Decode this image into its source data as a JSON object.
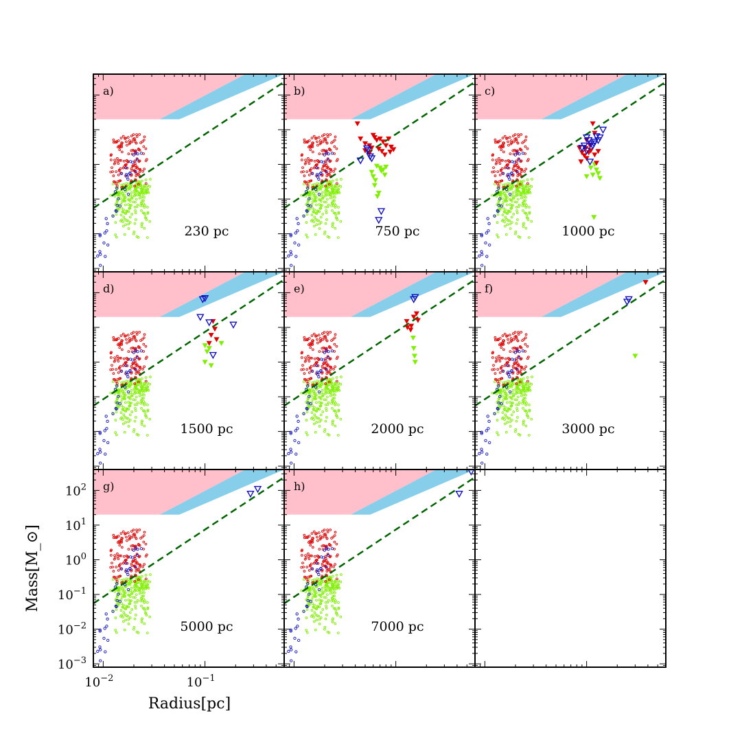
{
  "chart_data": {
    "type": "scatter",
    "layout": "3x3 grid of panels, shared log axes",
    "xlabel": "Radius[pc]",
    "ylabel": "Mass[M_⊙]",
    "xscale": "log",
    "yscale": "log",
    "xlim": [
      0.008,
      0.6
    ],
    "ylim": [
      0.0008,
      400
    ],
    "x_tick_labels": [
      {
        "value": 0.01,
        "base": "10",
        "exp": "−2"
      },
      {
        "value": 0.1,
        "base": "10",
        "exp": "−1"
      }
    ],
    "y_tick_labels": [
      {
        "value": 0.001,
        "base": "10",
        "exp": "−3"
      },
      {
        "value": 0.01,
        "base": "10",
        "exp": "−2"
      },
      {
        "value": 0.1,
        "base": "10",
        "exp": "−1"
      },
      {
        "value": 1,
        "base": "10",
        "exp": "0"
      },
      {
        "value": 10,
        "base": "10",
        "exp": "1"
      },
      {
        "value": 100,
        "base": "10",
        "exp": "2"
      }
    ],
    "colors": {
      "pink_region": "#ffc0cb",
      "blue_region": "#87ceeb",
      "red": "#e00000",
      "blue": "#1010c0",
      "green": "#7ff000",
      "threshold_line": "#006400"
    },
    "regions": {
      "pink_min_mass": 20,
      "pink_top_edge": [
        [
          0.008,
          400
        ],
        [
          0.6,
          400
        ]
      ],
      "blue_lower_edge": [
        [
          0.056,
          20
        ],
        [
          0.6,
          400
        ]
      ],
      "pink_blue_boundary": [
        [
          0.036,
          20
        ],
        [
          0.25,
          400
        ]
      ]
    },
    "threshold_line": {
      "style": "dashed",
      "points": [
        [
          0.008,
          0.055
        ],
        [
          0.6,
          240
        ]
      ]
    },
    "background_population": {
      "red_small_circles": "≈140 pts, radius 0.012–0.027 pc, mass 0.2–7",
      "blue_small_circles": "≈40 pts, radius 0.008–0.022 pc, mass 0.001–3",
      "green_small_dots": "≈220 pts, radius 0.012–0.028 pc, mass 0.002–0.4"
    },
    "panels": [
      {
        "id": "a",
        "label": "a)",
        "distance": "230 pc",
        "red_tri": [],
        "blue_tri": [],
        "green_tri": []
      },
      {
        "id": "b",
        "label": "b)",
        "distance": "750 pc",
        "red_tri": [
          [
            0.042,
            15
          ],
          [
            0.045,
            5.5
          ],
          [
            0.05,
            4
          ],
          [
            0.055,
            3.5
          ],
          [
            0.06,
            7
          ],
          [
            0.058,
            3
          ],
          [
            0.065,
            5
          ],
          [
            0.07,
            5.5
          ],
          [
            0.075,
            4.5
          ],
          [
            0.08,
            3.5
          ],
          [
            0.085,
            5.5
          ],
          [
            0.09,
            3.2
          ],
          [
            0.068,
            2.8
          ],
          [
            0.062,
            6
          ],
          [
            0.073,
            2.4
          ],
          [
            0.055,
            2.1
          ],
          [
            0.078,
            1.9
          ],
          [
            0.088,
            2.3
          ],
          [
            0.095,
            2.7
          ],
          [
            0.05,
            2.5
          ]
        ],
        "blue_tri": [
          [
            0.045,
            1.3
          ],
          [
            0.053,
            2.6
          ],
          [
            0.056,
            1.7
          ],
          [
            0.058,
            1.5
          ],
          [
            0.052,
            2.9
          ],
          [
            0.072,
            0.045
          ],
          [
            0.068,
            0.025
          ]
        ],
        "green_tri": [
          [
            0.058,
            0.6
          ],
          [
            0.06,
            0.45
          ],
          [
            0.063,
            0.35
          ],
          [
            0.065,
            0.9
          ],
          [
            0.07,
            0.8
          ],
          [
            0.072,
            0.65
          ],
          [
            0.075,
            0.7
          ],
          [
            0.062,
            0.25
          ],
          [
            0.068,
            0.15
          ],
          [
            0.08,
            0.85
          ],
          [
            0.078,
            0.5
          ],
          [
            0.066,
            0.12
          ]
        ]
      },
      {
        "id": "c",
        "label": "c)",
        "distance": "1000 pc",
        "red_tri": [
          [
            0.115,
            15
          ],
          [
            0.12,
            8
          ],
          [
            0.1,
            5
          ],
          [
            0.085,
            3
          ],
          [
            0.09,
            2.2
          ],
          [
            0.11,
            2.5
          ],
          [
            0.095,
            1.8
          ],
          [
            0.1,
            1.5
          ],
          [
            0.105,
            2.2
          ],
          [
            0.12,
            1.9
          ],
          [
            0.13,
            2.4
          ],
          [
            0.108,
            3.5
          ],
          [
            0.098,
            2.9
          ],
          [
            0.088,
            1.2
          ],
          [
            0.125,
            1.1
          ]
        ],
        "blue_tri": [
          [
            0.1,
            6
          ],
          [
            0.105,
            5
          ],
          [
            0.11,
            4
          ],
          [
            0.095,
            3.5
          ],
          [
            0.12,
            4.5
          ],
          [
            0.13,
            5
          ],
          [
            0.125,
            6.5
          ],
          [
            0.09,
            3
          ],
          [
            0.135,
            6
          ],
          [
            0.1,
            2.5
          ],
          [
            0.115,
            3.5
          ],
          [
            0.145,
            10
          ],
          [
            0.108,
            1.2
          ],
          [
            0.118,
            4
          ]
        ],
        "green_tri": [
          [
            0.11,
            0.8
          ],
          [
            0.12,
            1
          ],
          [
            0.115,
            0.5
          ],
          [
            0.125,
            0.7
          ],
          [
            0.13,
            0.55
          ],
          [
            0.135,
            0.4
          ],
          [
            0.1,
            0.45
          ],
          [
            0.118,
            0.03
          ]
        ]
      },
      {
        "id": "d",
        "label": "d)",
        "distance": "1500 pc",
        "red_tri": [
          [
            0.12,
            15
          ],
          [
            0.115,
            6
          ],
          [
            0.125,
            9
          ],
          [
            0.13,
            4.5
          ],
          [
            0.11,
            3.5
          ]
        ],
        "blue_tri": [
          [
            0.095,
            65
          ],
          [
            0.1,
            70
          ],
          [
            0.09,
            20
          ],
          [
            0.11,
            14
          ],
          [
            0.12,
            1.6
          ],
          [
            0.19,
            12
          ]
        ],
        "green_tri": [
          [
            0.1,
            3
          ],
          [
            0.105,
            2
          ],
          [
            0.11,
            2.5
          ],
          [
            0.1,
            1
          ],
          [
            0.115,
            0.8
          ],
          [
            0.145,
            3.5
          ]
        ]
      },
      {
        "id": "e",
        "label": "e)",
        "distance": "2000 pc",
        "red_tri": [
          [
            0.128,
            15
          ],
          [
            0.13,
            10
          ],
          [
            0.14,
            8.5
          ],
          [
            0.15,
            20
          ],
          [
            0.16,
            25
          ],
          [
            0.165,
            16
          ],
          [
            0.142,
            11
          ]
        ],
        "blue_tri": [
          [
            0.15,
            65
          ],
          [
            0.155,
            75
          ]
        ],
        "green_tri": [
          [
            0.148,
            5
          ],
          [
            0.15,
            2.5
          ],
          [
            0.153,
            1.5
          ],
          [
            0.155,
            1
          ]
        ]
      },
      {
        "id": "f",
        "label": "f)",
        "distance": "3000 pc",
        "red_tri": [
          [
            0.38,
            200
          ]
        ],
        "blue_tri": [
          [
            0.25,
            55
          ],
          [
            0.26,
            65
          ]
        ],
        "green_tri": [
          [
            0.3,
            1.5
          ]
        ]
      },
      {
        "id": "g",
        "label": "g)",
        "distance": "5000 pc",
        "red_tri": [],
        "blue_tri": [
          [
            0.28,
            80
          ],
          [
            0.33,
            110
          ]
        ],
        "green_tri": []
      },
      {
        "id": "h",
        "label": "h)",
        "distance": "7000 pc",
        "red_tri": [],
        "blue_tri": [
          [
            0.42,
            80
          ],
          [
            0.55,
            350
          ]
        ],
        "green_tri": []
      },
      {
        "id": "i",
        "label": "",
        "distance": "",
        "empty": true
      }
    ]
  }
}
